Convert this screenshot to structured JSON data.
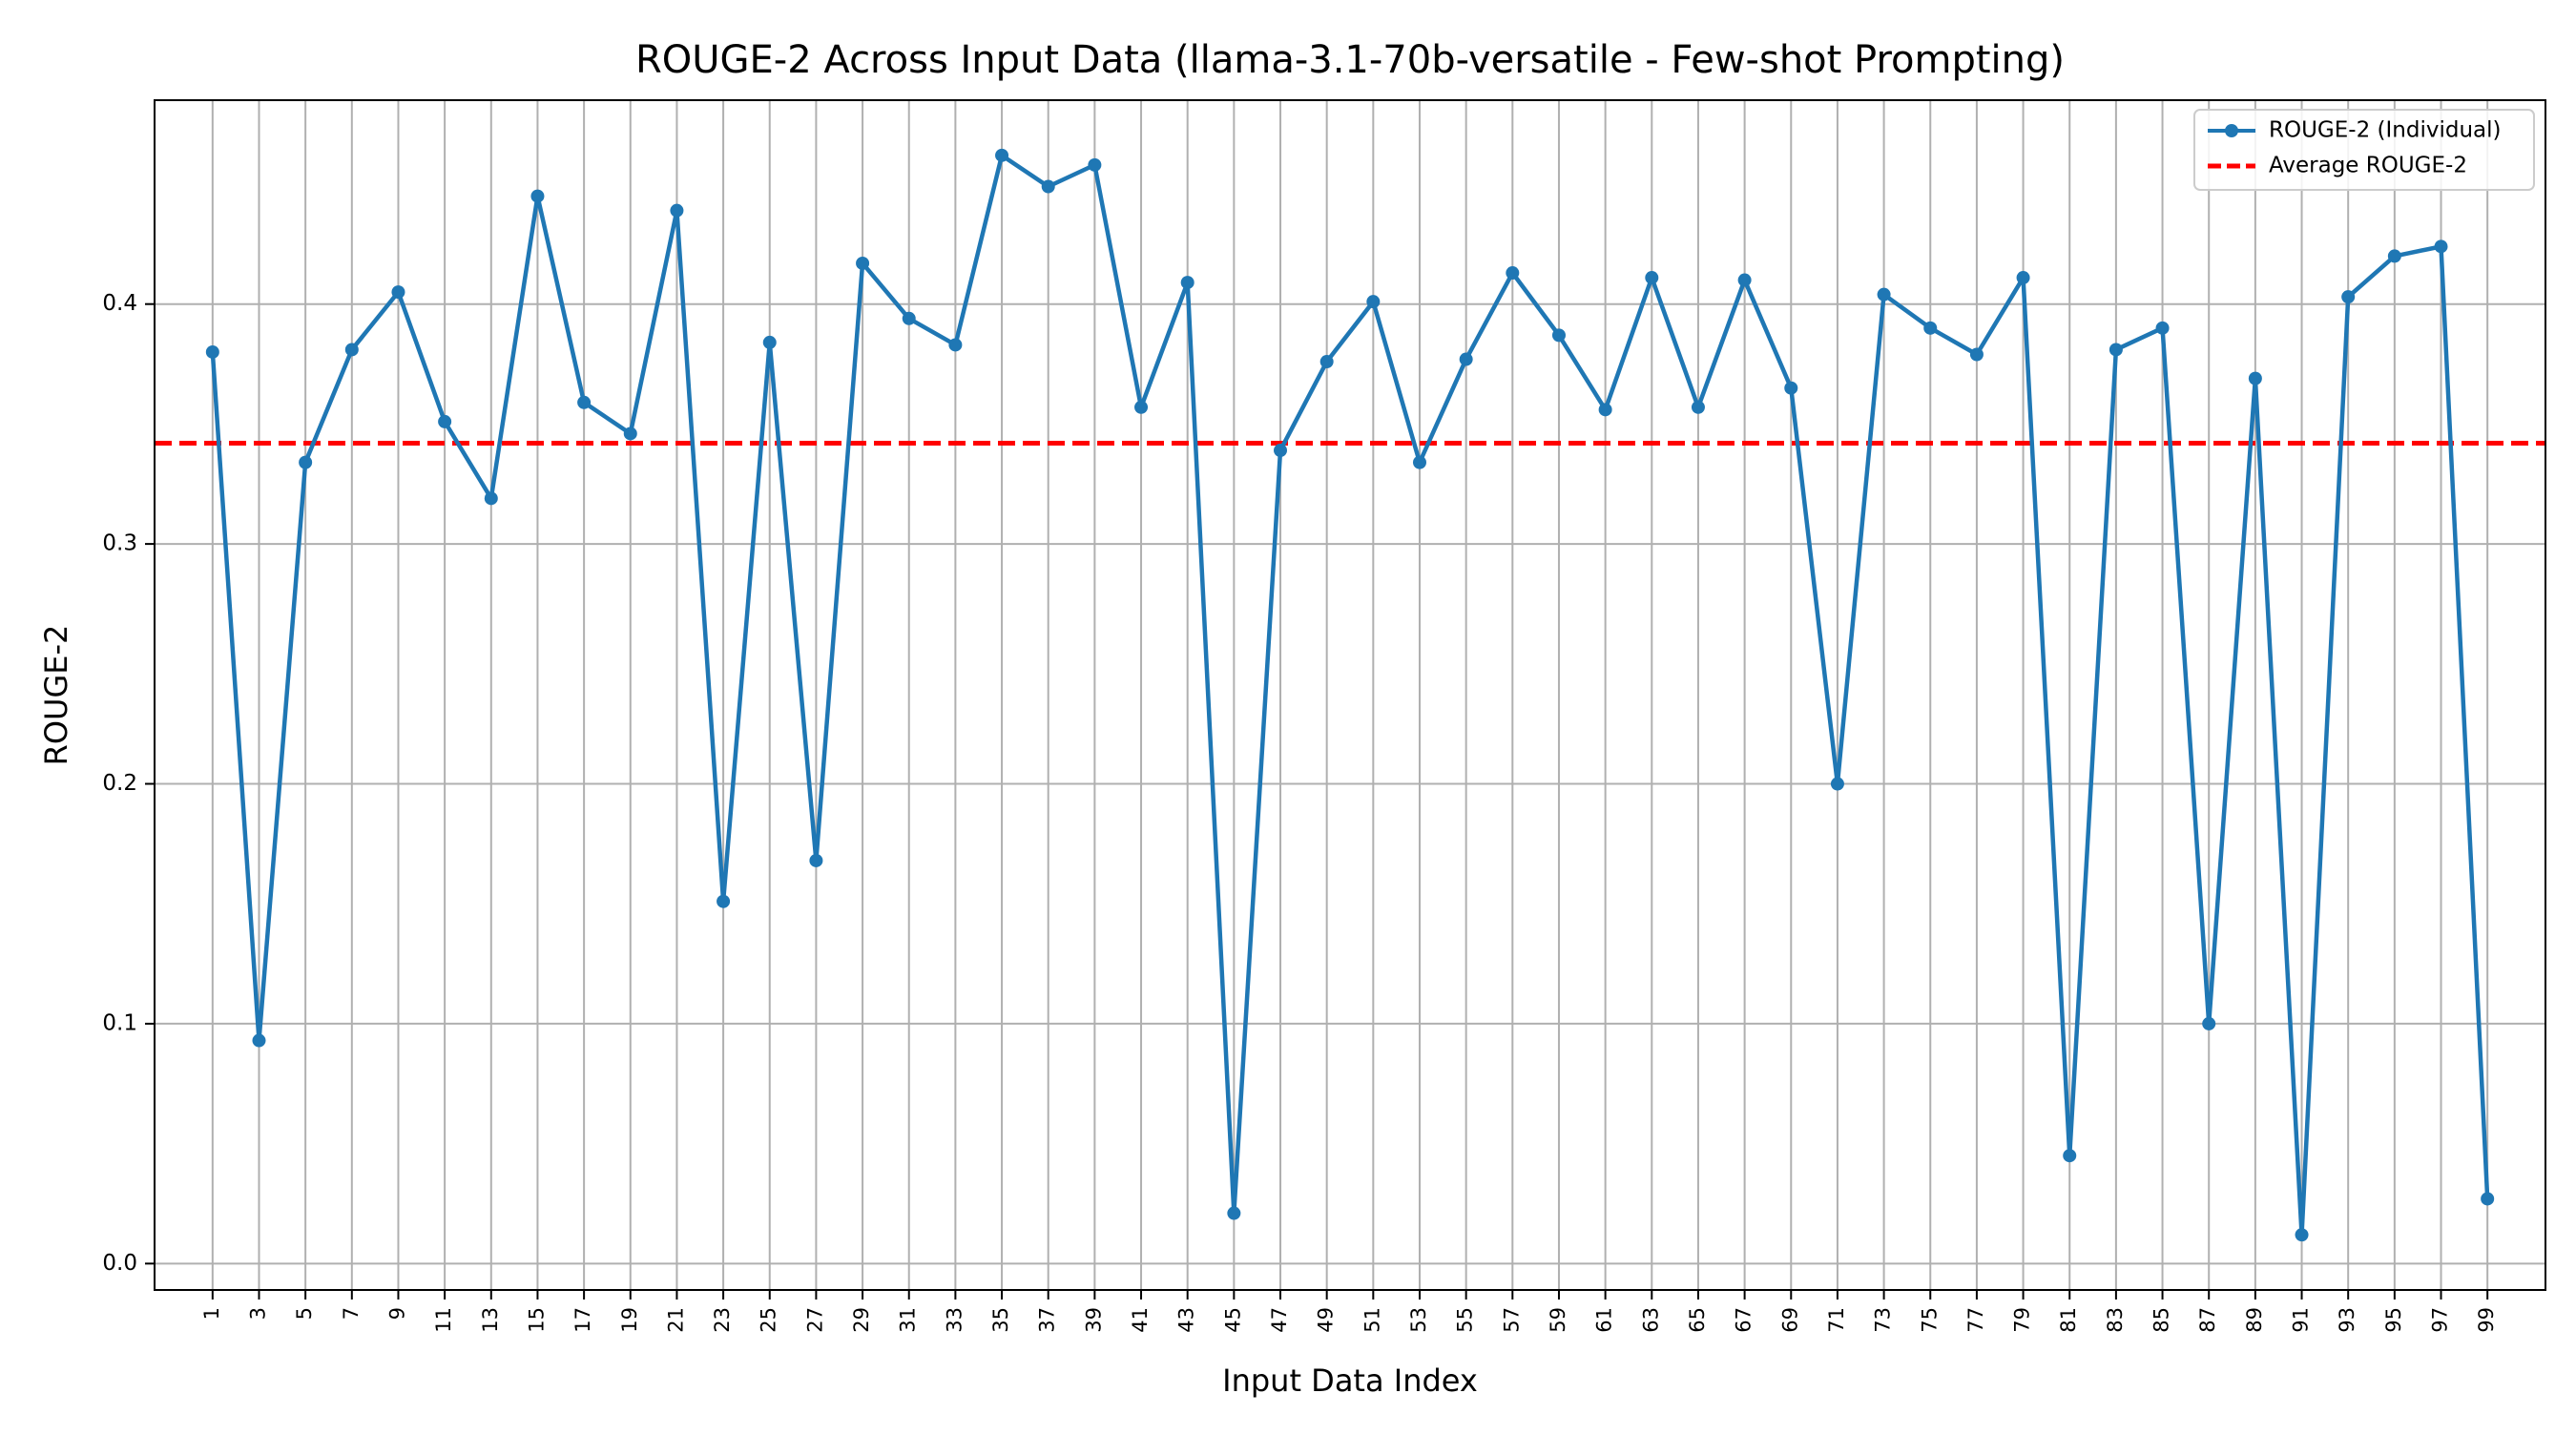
{
  "chart_data": {
    "type": "line",
    "title": "ROUGE-2 Across Input Data (llama-3.1-70b-versatile - Few-shot Prompting)",
    "xlabel": "Input Data Index",
    "ylabel": "ROUGE-2",
    "x": [
      1,
      3,
      5,
      7,
      9,
      11,
      13,
      15,
      17,
      19,
      21,
      23,
      25,
      27,
      29,
      31,
      33,
      35,
      37,
      39,
      41,
      43,
      45,
      47,
      49,
      51,
      53,
      55,
      57,
      59,
      61,
      63,
      65,
      67,
      69,
      71,
      73,
      75,
      77,
      79,
      81,
      83,
      85,
      87,
      89,
      91,
      93,
      95,
      97,
      99
    ],
    "xlim": [
      -1.5,
      101.5
    ],
    "ylim": [
      -0.011,
      0.485
    ],
    "yticks": [
      0.0,
      0.1,
      0.2,
      0.3,
      0.4
    ],
    "ytick_labels": [
      "0.0",
      "0.1",
      "0.2",
      "0.3",
      "0.4"
    ],
    "grid": true,
    "legend_position": "top-right",
    "series": [
      {
        "name": "ROUGE-2 (Individual)",
        "style": "line-marker",
        "color": "#1f77b4",
        "values": [
          0.38,
          0.093,
          0.334,
          0.381,
          0.405,
          0.351,
          0.319,
          0.445,
          0.359,
          0.346,
          0.439,
          0.151,
          0.384,
          0.168,
          0.417,
          0.394,
          0.383,
          0.462,
          0.449,
          0.458,
          0.357,
          0.409,
          0.021,
          0.339,
          0.376,
          0.401,
          0.334,
          0.377,
          0.413,
          0.387,
          0.356,
          0.411,
          0.357,
          0.41,
          0.365,
          0.2,
          0.404,
          0.39,
          0.379,
          0.411,
          0.045,
          0.381,
          0.39,
          0.1,
          0.369,
          0.012,
          0.403,
          0.42,
          0.424,
          0.027
        ]
      },
      {
        "name": "Average ROUGE-2",
        "style": "dashed-hline",
        "color": "#ff0000",
        "value": 0.342
      }
    ]
  }
}
